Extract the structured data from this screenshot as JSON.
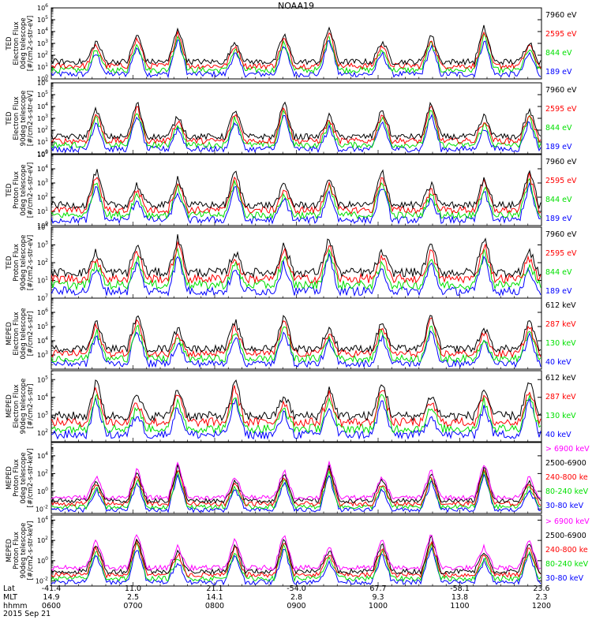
{
  "title": "NOAA19",
  "colors": {
    "black": "#000000",
    "red": "#ff0000",
    "green": "#00e000",
    "blue": "#0000ff",
    "magenta": "#ff00ff"
  },
  "chart_data": [
    {
      "type": "line",
      "ylabel": [
        "TED",
        "Electron Flux",
        "0deg telescope",
        "[#/cm2-s-str-eV]"
      ],
      "ylog": true,
      "ylim_exp": [
        0,
        6
      ],
      "ytick_exp": [
        0,
        1,
        2,
        3,
        4,
        5,
        6
      ],
      "legend": [
        {
          "label": "7960 eV",
          "color": "black"
        },
        {
          "label": "2595 eV",
          "color": "red"
        },
        {
          "label": "844 eV",
          "color": "green"
        },
        {
          "label": "189 eV",
          "color": "blue"
        }
      ]
    },
    {
      "type": "line",
      "ylabel": [
        "TED",
        "Electron Flux",
        "90deg telescope",
        "[#/cm2-s-str-eV]"
      ],
      "ylog": true,
      "ylim_exp": [
        0,
        6
      ],
      "ytick_exp": [
        0,
        1,
        2,
        3,
        4,
        5,
        6
      ],
      "legend": [
        {
          "label": "7960 eV",
          "color": "black"
        },
        {
          "label": "2595 eV",
          "color": "red"
        },
        {
          "label": "844 eV",
          "color": "green"
        },
        {
          "label": "189 eV",
          "color": "blue"
        }
      ]
    },
    {
      "type": "line",
      "ylabel": [
        "TED",
        "Proton Flux",
        "0deg telescope",
        "[#/cm2-s-str-eV]"
      ],
      "ylog": true,
      "ylim_exp": [
        0,
        5
      ],
      "ytick_exp": [
        0,
        1,
        2,
        3,
        4,
        5
      ],
      "legend": [
        {
          "label": "7960 eV",
          "color": "black"
        },
        {
          "label": "2595 eV",
          "color": "red"
        },
        {
          "label": "844 eV",
          "color": "green"
        },
        {
          "label": "189 eV",
          "color": "blue"
        }
      ]
    },
    {
      "type": "line",
      "ylabel": [
        "TED",
        "Proton Flux",
        "90deg telescope",
        "[#/cm2-s-str-eV]"
      ],
      "ylog": true,
      "ylim_exp": [
        0,
        4
      ],
      "ytick_exp": [
        1,
        2,
        3,
        4
      ],
      "legend": [
        {
          "label": "7960 eV",
          "color": "black"
        },
        {
          "label": "2595 eV",
          "color": "red"
        },
        {
          "label": "844 eV",
          "color": "green"
        },
        {
          "label": "189 eV",
          "color": "blue"
        }
      ]
    },
    {
      "type": "line",
      "ylabel": [
        "MEPED",
        "Electron Flux",
        "0deg telescope",
        "[#/cm2-s-str]"
      ],
      "ylog": true,
      "ylim_exp": [
        2,
        7
      ],
      "ytick_exp": [
        3,
        4,
        5,
        6,
        7
      ],
      "legend": [
        {
          "label": "612 keV",
          "color": "black"
        },
        {
          "label": "287 keV",
          "color": "red"
        },
        {
          "label": "130 keV",
          "color": "green"
        },
        {
          "label": "40 keV",
          "color": "blue"
        }
      ]
    },
    {
      "type": "line",
      "ylabel": [
        "MEPED",
        "Electron Flux",
        "90deg telescope",
        "[#/cm2-s-str]"
      ],
      "ylog": true,
      "ylim_exp": [
        1.5,
        5.5
      ],
      "ytick_exp": [
        2,
        3,
        4,
        5
      ],
      "legend": [
        {
          "label": "612 keV",
          "color": "black"
        },
        {
          "label": "287 keV",
          "color": "red"
        },
        {
          "label": "130 keV",
          "color": "green"
        },
        {
          "label": "40 keV",
          "color": "blue"
        }
      ]
    },
    {
      "type": "line",
      "ylabel": [
        "MEPED",
        "Proton Flux",
        "0deg telescope",
        "[#/cm2-s-str-keV]"
      ],
      "ylog": true,
      "ylim_exp": [
        -2.5,
        5.5
      ],
      "ytick_exp": [
        -2,
        0,
        2,
        4
      ],
      "legend": [
        {
          "label": "> 6900 keV",
          "color": "magenta"
        },
        {
          "label": "2500-6900",
          "color": "black"
        },
        {
          "label": "240-800 ke",
          "color": "red"
        },
        {
          "label": "80-240 keV",
          "color": "green"
        },
        {
          "label": "30-80 keV",
          "color": "blue"
        }
      ]
    },
    {
      "type": "line",
      "ylabel": [
        "MEPED",
        "Proton Flux",
        "90deg telescope",
        "[#/cm2-s-str-keV]"
      ],
      "ylog": true,
      "ylim_exp": [
        -2.5,
        4.5
      ],
      "ytick_exp": [
        -2,
        0,
        2,
        4
      ],
      "legend": [
        {
          "label": "> 6900 keV",
          "color": "magenta"
        },
        {
          "label": "2500-6900",
          "color": "black"
        },
        {
          "label": "240-800 ke",
          "color": "red"
        },
        {
          "label": "80-240 keV",
          "color": "green"
        },
        {
          "label": "30-80 keV",
          "color": "blue"
        }
      ]
    }
  ],
  "footer": {
    "row_labels": [
      "Lat",
      "MLT",
      "hhmm",
      "2015 Sep 21"
    ],
    "ticks": [
      {
        "lat": "-41.4",
        "mlt": "14.9",
        "hhmm": "0600"
      },
      {
        "lat": "11.0",
        "mlt": "2.5",
        "hhmm": "0700"
      },
      {
        "lat": "21.1",
        "mlt": "14.1",
        "hhmm": "0800"
      },
      {
        "lat": "-54.0",
        "mlt": "2.8",
        "hhmm": "0900"
      },
      {
        "lat": "67.7",
        "mlt": "9.3",
        "hhmm": "1000"
      },
      {
        "lat": "-58.1",
        "mlt": "13.8",
        "hhmm": "1100"
      },
      {
        "lat": "23.6",
        "mlt": "2.3",
        "hhmm": "1200"
      }
    ]
  }
}
